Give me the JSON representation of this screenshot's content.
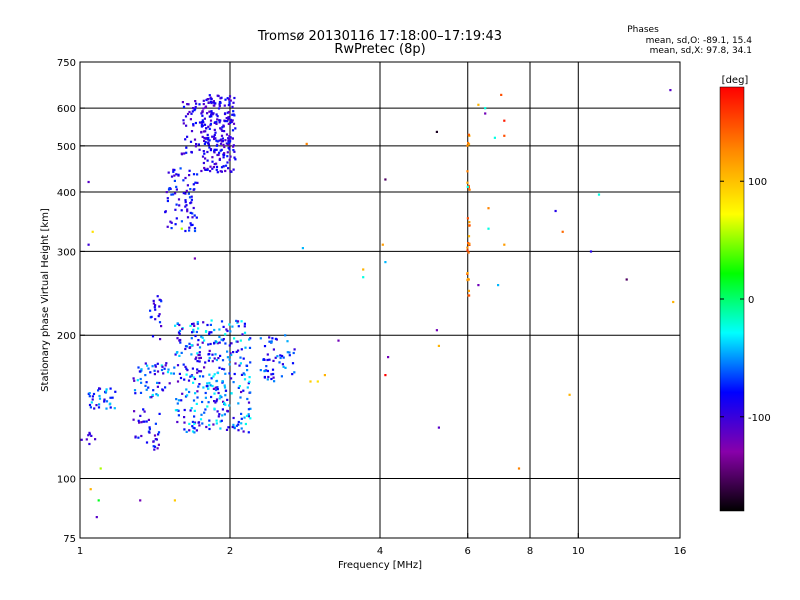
{
  "chart_data": {
    "type": "scatter",
    "title": "Tromsø 20130116 17:18:00–17:19:43",
    "subtitle": "RwPretec (8p)",
    "xlabel": "Frequency [MHz]",
    "ylabel": "Stationary phase Virtual Height [km]",
    "x_scale": "log",
    "y_scale": "log",
    "xlim": [
      1,
      16
    ],
    "ylim": [
      75,
      750
    ],
    "x_ticks": [
      1,
      2,
      4,
      6,
      8,
      10,
      16
    ],
    "x_tick_labels": [
      "1",
      "2",
      "4",
      "6",
      "8",
      "10",
      "16"
    ],
    "y_ticks": [
      75,
      100,
      200,
      300,
      400,
      500,
      600,
      750
    ],
    "y_tick_labels": [
      "75",
      "100",
      "200",
      "300",
      "400",
      "500",
      "600",
      "750"
    ],
    "x_gridlines": [
      2,
      4,
      6,
      8,
      10
    ],
    "y_gridlines": [
      100,
      200,
      300,
      400,
      500,
      600
    ],
    "grid": true,
    "phases_box": {
      "title": "Phases",
      "line1": "mean, sd,O: -89.1, 15.4",
      "line2": "mean, sd,X:  97.8, 34.1"
    },
    "colorbar": {
      "label": "[deg]",
      "range": [
        -180,
        180
      ],
      "ticks": [
        100,
        0,
        -100
      ],
      "tick_labels": [
        "100",
        "0",
        "-100"
      ],
      "colors": [
        "#000000",
        "#8800aa",
        "#0000ff",
        "#00ffff",
        "#00ff00",
        "#ffff00",
        "#ff8800",
        "#ff0000"
      ]
    },
    "clusters": [
      {
        "x": [
          1.0,
          1.08
        ],
        "y": [
          118,
          125
        ],
        "phase": [
          -110,
          -90
        ],
        "n": 8
      },
      {
        "x": [
          1.04,
          1.18
        ],
        "y": [
          140,
          155
        ],
        "phase": [
          -100,
          -30
        ],
        "n": 35
      },
      {
        "x": [
          1.28,
          1.55
        ],
        "y": [
          148,
          175
        ],
        "phase": [
          -110,
          -20
        ],
        "n": 55
      },
      {
        "x": [
          1.28,
          1.45
        ],
        "y": [
          115,
          140
        ],
        "phase": [
          -115,
          -60
        ],
        "n": 35
      },
      {
        "x": [
          1.38,
          1.48
        ],
        "y": [
          195,
          245
        ],
        "phase": [
          -110,
          -60
        ],
        "n": 20
      },
      {
        "x": [
          1.55,
          2.2
        ],
        "y": [
          125,
          215
        ],
        "phase": [
          -115,
          -20
        ],
        "n": 340
      },
      {
        "x": [
          2.3,
          2.7
        ],
        "y": [
          160,
          200
        ],
        "phase": [
          -110,
          -40
        ],
        "n": 55
      },
      {
        "x": [
          1.48,
          1.72
        ],
        "y": [
          330,
          450
        ],
        "phase": [
          -110,
          -60
        ],
        "n": 80
      },
      {
        "x": [
          1.6,
          1.75
        ],
        "y": [
          480,
          640
        ],
        "phase": [
          -110,
          -70
        ],
        "n": 40
      },
      {
        "x": [
          1.75,
          2.05
        ],
        "y": [
          440,
          640
        ],
        "phase": [
          -115,
          -70
        ],
        "n": 240
      },
      {
        "x": [
          5.98,
          6.05
        ],
        "y": [
          240,
          550
        ],
        "phase": [
          110,
          160
        ],
        "n": 30
      }
    ],
    "points": [
      {
        "x": 1.04,
        "y": 420,
        "phase": -110
      },
      {
        "x": 1.04,
        "y": 310,
        "phase": -100
      },
      {
        "x": 1.06,
        "y": 330,
        "phase": 90
      },
      {
        "x": 1.05,
        "y": 95,
        "phase": 110
      },
      {
        "x": 1.08,
        "y": 83,
        "phase": -110
      },
      {
        "x": 1.09,
        "y": 90,
        "phase": 20
      },
      {
        "x": 1.1,
        "y": 105,
        "phase": 60
      },
      {
        "x": 1.32,
        "y": 90,
        "phase": -120
      },
      {
        "x": 1.55,
        "y": 90,
        "phase": 100
      },
      {
        "x": 1.7,
        "y": 290,
        "phase": -120
      },
      {
        "x": 1.6,
        "y": 335,
        "phase": 60
      },
      {
        "x": 2.8,
        "y": 305,
        "phase": -40
      },
      {
        "x": 2.85,
        "y": 505,
        "phase": 130
      },
      {
        "x": 2.9,
        "y": 160,
        "phase": 100
      },
      {
        "x": 3.0,
        "y": 160,
        "phase": 90
      },
      {
        "x": 3.1,
        "y": 165,
        "phase": 110
      },
      {
        "x": 3.3,
        "y": 195,
        "phase": -120
      },
      {
        "x": 3.7,
        "y": 275,
        "phase": 110
      },
      {
        "x": 3.7,
        "y": 265,
        "phase": -20
      },
      {
        "x": 4.05,
        "y": 310,
        "phase": 120
      },
      {
        "x": 4.1,
        "y": 285,
        "phase": -40
      },
      {
        "x": 4.1,
        "y": 425,
        "phase": -150
      },
      {
        "x": 4.15,
        "y": 180,
        "phase": -120
      },
      {
        "x": 4.1,
        "y": 165,
        "phase": 180
      },
      {
        "x": 5.2,
        "y": 535,
        "phase": -170
      },
      {
        "x": 5.2,
        "y": 205,
        "phase": -120
      },
      {
        "x": 5.25,
        "y": 190,
        "phase": 110
      },
      {
        "x": 5.25,
        "y": 128,
        "phase": -110
      },
      {
        "x": 6.0,
        "y": 410,
        "phase": -20
      },
      {
        "x": 6.3,
        "y": 610,
        "phase": 110
      },
      {
        "x": 6.5,
        "y": 600,
        "phase": -20
      },
      {
        "x": 6.5,
        "y": 585,
        "phase": -120
      },
      {
        "x": 6.6,
        "y": 370,
        "phase": 130
      },
      {
        "x": 6.6,
        "y": 335,
        "phase": -20
      },
      {
        "x": 6.3,
        "y": 255,
        "phase": -120
      },
      {
        "x": 6.8,
        "y": 520,
        "phase": -20
      },
      {
        "x": 6.9,
        "y": 255,
        "phase": -40
      },
      {
        "x": 7.0,
        "y": 640,
        "phase": 150
      },
      {
        "x": 7.1,
        "y": 565,
        "phase": 170
      },
      {
        "x": 7.1,
        "y": 525,
        "phase": 150
      },
      {
        "x": 7.1,
        "y": 310,
        "phase": 120
      },
      {
        "x": 7.6,
        "y": 105,
        "phase": 130
      },
      {
        "x": 9.0,
        "y": 365,
        "phase": -90
      },
      {
        "x": 9.3,
        "y": 330,
        "phase": 140
      },
      {
        "x": 9.6,
        "y": 150,
        "phase": 110
      },
      {
        "x": 10.6,
        "y": 300,
        "phase": -90
      },
      {
        "x": 11.0,
        "y": 395,
        "phase": -20
      },
      {
        "x": 12.5,
        "y": 262,
        "phase": -150
      },
      {
        "x": 15.3,
        "y": 655,
        "phase": -110
      },
      {
        "x": 15.5,
        "y": 235,
        "phase": 110
      }
    ]
  }
}
